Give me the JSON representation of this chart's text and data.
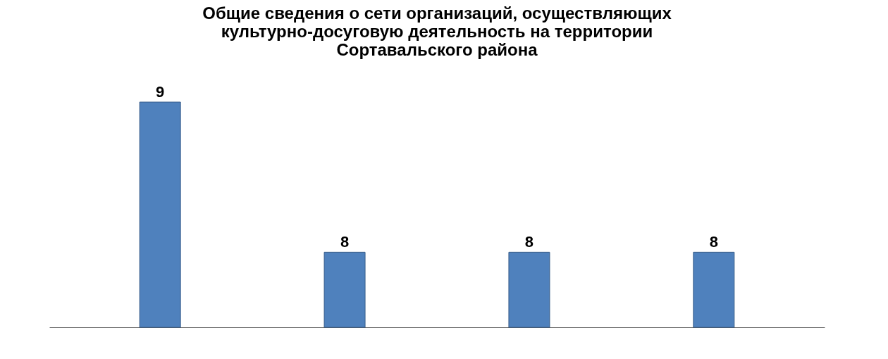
{
  "chart_data": {
    "type": "bar",
    "title": [
      "Общие сведения о сети организаций, осуществляющих",
      "культурно-досуговую деятельность на территории",
      "Сортавальского района"
    ],
    "categories": [
      null,
      null,
      null,
      null
    ],
    "values": [
      9,
      8,
      8,
      8
    ],
    "color": "#4f81bd",
    "ylim": [
      7.5,
      9
    ],
    "data_labels": true,
    "tick_labels": false
  }
}
